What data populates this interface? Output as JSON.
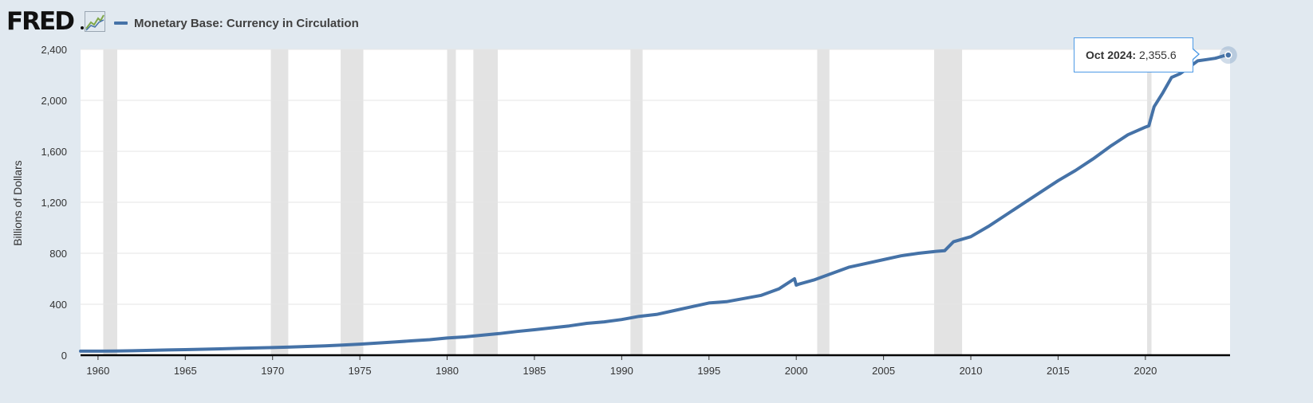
{
  "header": {
    "logo_text": "FRED",
    "logo_mark": "chart-line-icon"
  },
  "chart_data": {
    "type": "line",
    "title": "",
    "ylabel": "Billions of Dollars",
    "xlabel": "",
    "xlim": [
      1959.0,
      2024.85
    ],
    "ylim": [
      0,
      2400
    ],
    "yticks": [
      0,
      400,
      800,
      1200,
      1600,
      2000,
      2400
    ],
    "ytick_labels": [
      "0",
      "400",
      "800",
      "1,200",
      "1,600",
      "2,000",
      "2,400"
    ],
    "xticks": [
      1960,
      1965,
      1970,
      1975,
      1980,
      1985,
      1990,
      1995,
      2000,
      2005,
      2010,
      2015,
      2020
    ],
    "xtick_labels": [
      "1960",
      "1965",
      "1970",
      "1975",
      "1980",
      "1985",
      "1990",
      "1995",
      "2000",
      "2005",
      "2010",
      "2015",
      "2020"
    ],
    "grid": true,
    "legend": "top-left",
    "colors": {
      "series": "#4572a7",
      "recession": "#e3e3e3",
      "tooltip_border": "#4d9ae6"
    },
    "series": [
      {
        "name": "Monetary Base: Currency in Circulation",
        "x": [
          1959.0,
          1960.0,
          1961.0,
          1962.0,
          1963.0,
          1964.0,
          1965.0,
          1966.0,
          1967.0,
          1968.0,
          1969.0,
          1970.0,
          1971.0,
          1972.0,
          1973.0,
          1974.0,
          1975.0,
          1976.0,
          1977.0,
          1978.0,
          1979.0,
          1980.0,
          1981.0,
          1982.0,
          1983.0,
          1984.0,
          1985.0,
          1986.0,
          1987.0,
          1988.0,
          1989.0,
          1990.0,
          1991.0,
          1992.0,
          1993.0,
          1994.0,
          1995.0,
          1996.0,
          1997.0,
          1998.0,
          1999.0,
          1999.9,
          2000.0,
          2000.2,
          2001.0,
          2002.0,
          2003.0,
          2004.0,
          2005.0,
          2006.0,
          2007.0,
          2008.0,
          2008.5,
          2009.0,
          2010.0,
          2011.0,
          2012.0,
          2013.0,
          2014.0,
          2015.0,
          2016.0,
          2017.0,
          2018.0,
          2019.0,
          2020.0,
          2020.2,
          2020.5,
          2021.0,
          2021.5,
          2022.0,
          2022.5,
          2023.0,
          2023.5,
          2024.0,
          2024.5,
          2024.75
        ],
        "y": [
          32,
          32,
          33,
          35,
          38,
          41,
          44,
          47,
          50,
          54,
          57,
          60,
          64,
          69,
          74,
          80,
          87,
          95,
          104,
          113,
          122,
          135,
          144,
          157,
          170,
          186,
          200,
          215,
          230,
          250,
          262,
          280,
          305,
          320,
          350,
          380,
          410,
          420,
          445,
          470,
          520,
          600,
          550,
          560,
          590,
          640,
          690,
          720,
          750,
          780,
          800,
          815,
          820,
          890,
          930,
          1010,
          1100,
          1190,
          1280,
          1370,
          1450,
          1540,
          1640,
          1730,
          1790,
          1800,
          1950,
          2060,
          2180,
          2210,
          2260,
          2310,
          2320,
          2330,
          2350,
          2355.6
        ]
      }
    ],
    "recessions": [
      [
        1960.3,
        1961.1
      ],
      [
        1969.9,
        1970.9
      ],
      [
        1973.9,
        1975.2
      ],
      [
        1980.0,
        1980.5
      ],
      [
        1981.5,
        1982.9
      ],
      [
        1990.5,
        1991.2
      ],
      [
        2001.2,
        2001.9
      ],
      [
        2007.9,
        2009.5
      ],
      [
        2020.1,
        2020.35
      ]
    ],
    "tooltip": {
      "date": "Oct 2024:",
      "value": "2,355.6",
      "x": 2024.75,
      "y": 2355.6
    }
  }
}
